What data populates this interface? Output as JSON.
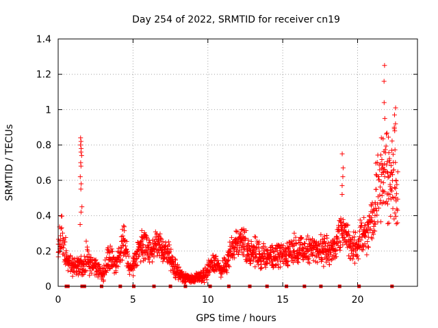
{
  "chart_data": {
    "type": "scatter",
    "title": "Day 254 of 2022, SRMTID for receiver cn19",
    "xlabel": "GPS time / hours",
    "ylabel": "SRMTID / TECUs",
    "xlim": [
      0,
      24
    ],
    "ylim": [
      0,
      1.4
    ],
    "x_ticks": [
      "0",
      "5",
      "10",
      "15",
      "20"
    ],
    "y_ticks": [
      "0",
      "0.2",
      "0.4",
      "0.6",
      "0.8",
      "1",
      "1.2",
      "1.4"
    ],
    "grid": true,
    "marker": "+",
    "color": "#ff0000",
    "series": [
      {
        "name": "SRMTID",
        "envelope_hours": [
          0.0,
          0.2,
          0.4,
          0.6,
          0.9,
          1.2,
          1.5,
          1.7,
          1.9,
          2.1,
          2.4,
          2.7,
          3.0,
          3.3,
          3.6,
          3.9,
          4.2,
          4.4,
          4.7,
          5.0,
          5.3,
          5.6,
          6.0,
          6.4,
          6.8,
          7.2,
          7.6,
          8.0,
          8.3,
          8.6,
          9.0,
          9.4,
          9.8,
          10.2,
          10.5,
          10.8,
          11.2,
          11.6,
          12.0,
          12.4,
          12.8,
          13.2,
          13.6,
          14.0,
          14.4,
          14.8,
          15.2,
          15.6,
          16.0,
          16.4,
          16.8,
          17.2,
          17.6,
          18.0,
          18.4,
          18.8,
          19.1,
          19.4,
          19.7,
          20.0,
          20.3,
          20.6,
          20.9,
          21.2,
          21.5,
          21.8,
          22.1,
          22.4,
          22.7
        ],
        "envelope_tecu": [
          0.2,
          0.3,
          0.25,
          0.15,
          0.12,
          0.11,
          0.12,
          0.1,
          0.2,
          0.13,
          0.12,
          0.09,
          0.07,
          0.15,
          0.16,
          0.12,
          0.22,
          0.28,
          0.12,
          0.1,
          0.2,
          0.25,
          0.2,
          0.22,
          0.23,
          0.2,
          0.14,
          0.08,
          0.05,
          0.04,
          0.04,
          0.05,
          0.06,
          0.12,
          0.14,
          0.09,
          0.13,
          0.2,
          0.27,
          0.24,
          0.18,
          0.2,
          0.16,
          0.18,
          0.16,
          0.17,
          0.18,
          0.2,
          0.22,
          0.19,
          0.21,
          0.22,
          0.2,
          0.2,
          0.21,
          0.3,
          0.33,
          0.26,
          0.22,
          0.25,
          0.28,
          0.3,
          0.33,
          0.5,
          0.62,
          0.7,
          0.58,
          0.65,
          0.6
        ],
        "spread_tecu": [
          0.05,
          0.08,
          0.08,
          0.05,
          0.04,
          0.04,
          0.05,
          0.04,
          0.08,
          0.05,
          0.04,
          0.03,
          0.03,
          0.05,
          0.05,
          0.04,
          0.07,
          0.07,
          0.04,
          0.04,
          0.06,
          0.07,
          0.06,
          0.06,
          0.07,
          0.06,
          0.05,
          0.03,
          0.02,
          0.02,
          0.02,
          0.02,
          0.03,
          0.04,
          0.04,
          0.03,
          0.04,
          0.06,
          0.07,
          0.07,
          0.06,
          0.06,
          0.05,
          0.05,
          0.05,
          0.05,
          0.05,
          0.06,
          0.06,
          0.06,
          0.06,
          0.06,
          0.06,
          0.06,
          0.06,
          0.07,
          0.07,
          0.07,
          0.07,
          0.07,
          0.07,
          0.08,
          0.1,
          0.15,
          0.18,
          0.2,
          0.2,
          0.2,
          0.22
        ],
        "spikes": [
          {
            "x": 1.5,
            "y": [
              0.35,
              0.42,
              0.55,
              0.62,
              0.7,
              0.76,
              0.8,
              0.84
            ]
          },
          {
            "x": 1.55,
            "y": [
              0.45,
              0.58,
              0.68,
              0.74,
              0.78,
              0.82
            ]
          },
          {
            "x": 19.0,
            "y": [
              0.52,
              0.57,
              0.62,
              0.67,
              0.75
            ]
          },
          {
            "x": 21.8,
            "y": [
              0.95,
              1.04,
              1.16,
              1.25
            ]
          },
          {
            "x": 22.5,
            "y": [
              0.88,
              0.92,
              0.97,
              1.01
            ]
          }
        ]
      }
    ],
    "gap_markers_hours": [
      0.55,
      0.65,
      1.6,
      1.75,
      2.9,
      4.15,
      5.05,
      6.4,
      7.5,
      8.5,
      10.15,
      11.4,
      12.8,
      13.95,
      15.25,
      16.45,
      17.55,
      18.8,
      20.1,
      22.3
    ]
  }
}
